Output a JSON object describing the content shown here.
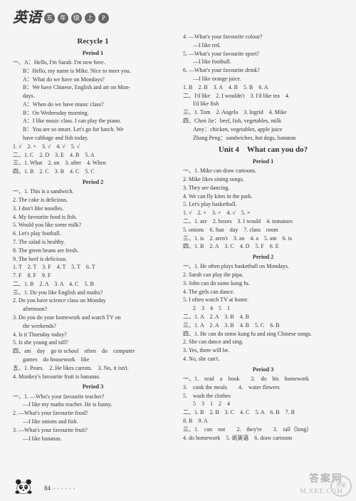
{
  "header": {
    "title": "英语",
    "badges": [
      "五",
      "年",
      "级",
      "上",
      "P"
    ]
  },
  "left": {
    "recycle_title": "Recycle 1",
    "period1_title": "Period 1",
    "p1": [
      "一、A：Hello, I'm Sarah. I'm new here.",
      "B：Hello, my name is Mike. Nice to meet you.",
      "A：What do we have on Mondays?",
      "B：We have Chinese, English and art on Mon-",
      "days.",
      "A：When do we have music class?",
      "B：On Wednesday morning.",
      "A：I like music class. I can play the piano.",
      "B：You are so smart. Let's go for lunch. We",
      "have cabbage and fish today.",
      "1. √　2. ×　3. √　4. √　5. √",
      "二、1. C　2. D　3. E　4. B　5. A",
      "三、1. What　2. on　3. after　4. When",
      "四、1. B　2. C　3. B　4. C　5. C"
    ],
    "period2_title": "Period 2",
    "p2": [
      "一、1. This is a sandwich.",
      "2. The cake is delicious.",
      "3. I don't like noodles.",
      "4. My favourite food is fish.",
      "5. Would you like some milk?",
      "6. Let's play football.",
      "7. The salad is healthy.",
      "8. The green beans are fresh.",
      "9. The beef is delicious.",
      "1. T　2. T　3. F　4. T　5. T　6. T",
      "7. F　8. F　9. F",
      "二、1. B　2. A　3. A　4. C　5. B",
      "三、1. Do you like English and maths?",
      "2. Do you have science class on Monday",
      "afternoon?",
      "3. Do you do your homework and watch TV on",
      "the weekends?",
      "4. Is it Thursday today?",
      "5. Is she young and tall?",
      "四、am　day　go to school　often　do　computer",
      "games　do housework　like",
      "五、1. Pears.　2. He likes carrots.　3. No, it isn't.",
      "4. Monkey's favourite fruit is bananas."
    ],
    "period3_title": "Period 3",
    "p3": [
      "一、1. —Who's your favourite teacher?",
      "—I like my maths teacher. He is funny.",
      "2. —What's your favourite food?",
      "—I like onions and fish.",
      "3. —What's your favourite fruit?",
      "—I like bananas."
    ]
  },
  "right": {
    "p3b": [
      "4. —What's your favourite colour?",
      "—I like red.",
      "5. —What's your favourite sport?",
      "—I like football.",
      "6. —What's your favourite drink?",
      "—I like orange juice.",
      "1. B　2. B　3. A　4. B　5. B　6. A",
      "二、I'd like　2. I wouldn't　3. I'd like tea　4.",
      "I'd like fish",
      "三、1. Tom　2. Angela　3. Ingrid　4. Mike",
      "四、Chen Jie：beef, fish, vegetables, milk",
      "Amy：chicken, vegetables, apple juice",
      "Zhang Peng：sandwiches, hot dogs, bananas"
    ],
    "unit4_title": "Unit 4　What can you do?",
    "u4p1_title": "Period 1",
    "u4p1": [
      "一、1. Mike can draw cartoons.",
      "2. Mike likes sining songs.",
      "3. They are dancing.",
      "4. We can fly kites in the park.",
      "5. Let's play basketball.",
      "1. √　2. ×　3. ×　4. √　5. ×",
      "二、1. are　2. boxes　3. I would　4. tomatoes",
      "5. onions　6. Sun　day　7. class　room",
      "三、1. is　2. aren't　3. an　4. a　5. am　6. is",
      "四、1. B　2. A　3. C　4. D　5. F　6. E"
    ],
    "u4p2_title": "Period 2",
    "u4p2": [
      "一、1. He often plays basketball on Mondays.",
      "2. Sarah can play the pipa.",
      "3. John can do some kung fu.",
      "4. The girls can dance.",
      "5. I often watch TV at home.",
      "2　3　4　5　1",
      "二、1. A　2. A　3. B　4. B",
      "三、1. A　2. A　3. B　4. B　5. C　6. B",
      "四、1. He can do some kung fu and sing Chinese songs.",
      "2. She can dance and sing.",
      "3. Yes, there will be.",
      "4. No, she can't."
    ],
    "u4p3_title": "Period 3",
    "u4p3": [
      "一、1.　read　a　book　　2.　do　his　homework",
      "3.　cook the meals　　4.　water flowers",
      "5.　wash the clothes",
      "5　3　1　2　4",
      "二、1. B　2. B　3. C　4. C　5. A　6. B　7. B",
      "8. B　9. A",
      "三、1.　can　not　　2.　they're　　3.　tall（long）",
      "4. do homework　5. 说英语　6. draw cartoons"
    ]
  },
  "footer": {
    "page": "84",
    "wm1": "答案网",
    "wm2": "M.XKE.COM",
    "wm_circle": "答案"
  }
}
